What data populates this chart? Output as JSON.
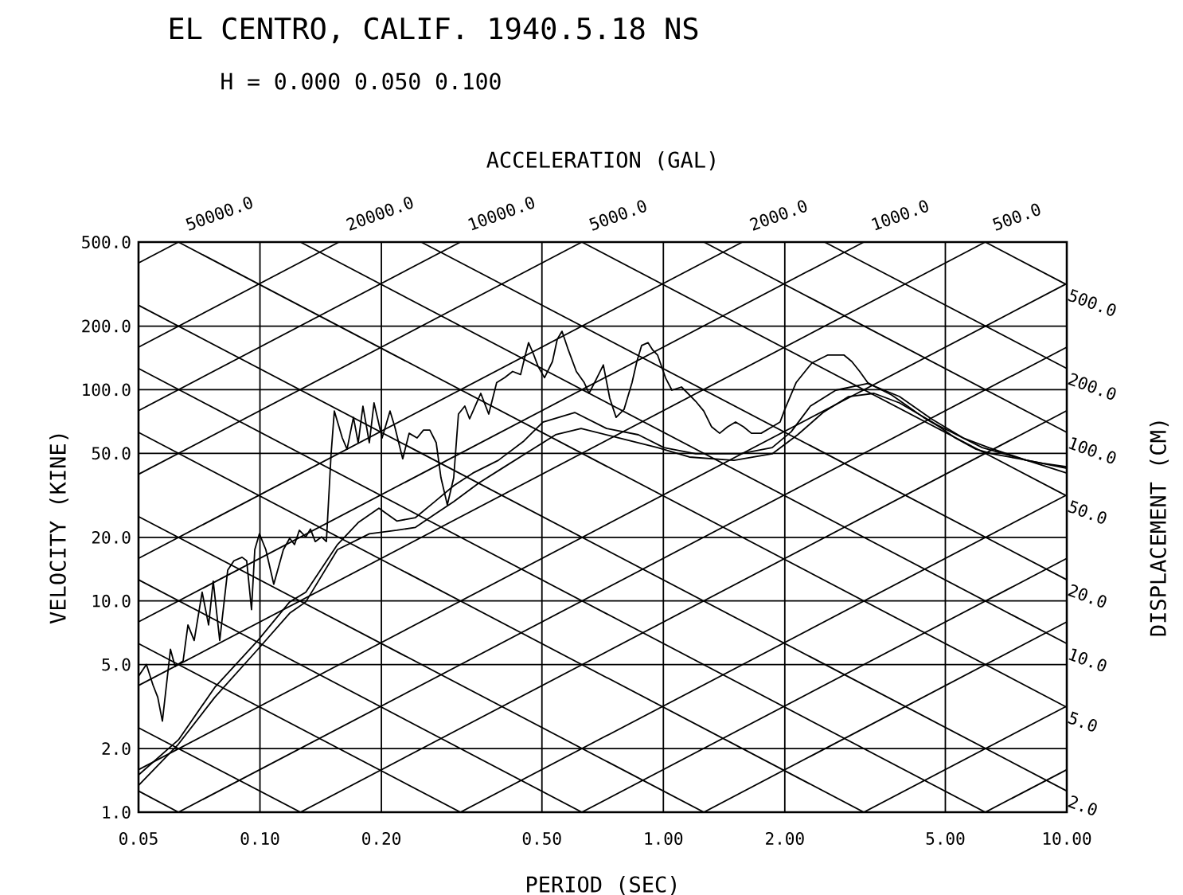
{
  "chart_data": {
    "type": "line",
    "title": "EL CENTRO, CALIF. 1940.5.18 NS",
    "subtitle": "H = 0.000 0.050 0.100",
    "xlabel": "PERIOD (SEC)",
    "ylabel": "VELOCITY (KINE)",
    "x2label": "ACCELERATION (GAL)",
    "y2label": "DISPLACEMENT (CM)",
    "log": "xy",
    "grid": true,
    "line_style": "solid",
    "xlim": [
      0.05,
      10
    ],
    "ylim": [
      1,
      500
    ],
    "xticks": [
      0.05,
      {
        "value": 0.1,
        "label": "0.10"
      },
      {
        "value": 0.2,
        "label": "0.20"
      },
      {
        "value": 0.5,
        "label": "0.50"
      },
      {
        "value": 1,
        "label": "1.00"
      },
      {
        "value": 2,
        "label": "2.00"
      },
      {
        "value": 5,
        "label": "5.00"
      },
      {
        "value": 10,
        "label": "10.00"
      }
    ],
    "yticks": [
      {
        "value": 1,
        "label": "1.0"
      },
      {
        "value": 2,
        "label": "2.0"
      },
      {
        "value": 5,
        "label": "5.0"
      },
      {
        "value": 10,
        "label": "10.0"
      },
      {
        "value": 20,
        "label": "20.0"
      },
      {
        "value": 50,
        "label": "50.0"
      },
      {
        "value": 100,
        "label": "100.0"
      },
      {
        "value": 200,
        "label": "200.0"
      },
      {
        "value": 500,
        "label": "500.0"
      }
    ],
    "series": [
      {
        "color": "#000000",
        "x": [
          0.05,
          0.0523,
          0.0543,
          0.0558,
          0.0573,
          0.06,
          0.0616,
          0.0645,
          0.0663,
          0.0687,
          0.0719,
          0.0746,
          0.0766,
          0.0795,
          0.0832,
          0.0862,
          0.0903,
          0.0927,
          0.0953,
          0.0971,
          0.0997,
          0.1034,
          0.1082,
          0.1143,
          0.1185,
          0.1218,
          0.1252,
          0.1299,
          0.1334,
          0.1371,
          0.1422,
          0.1461,
          0.1501,
          0.1529,
          0.16,
          0.1644,
          0.1705,
          0.1752,
          0.18,
          0.1867,
          0.1918,
          0.2008,
          0.2101,
          0.2159,
          0.2259,
          0.2343,
          0.2452,
          0.2543,
          0.2637,
          0.2735,
          0.281,
          0.2914,
          0.3022,
          0.3105,
          0.322,
          0.3309,
          0.3527,
          0.3691,
          0.3862,
          0.4042,
          0.423,
          0.4427,
          0.4549,
          0.4633,
          0.4761,
          0.4892,
          0.5074,
          0.531,
          0.5456,
          0.5607,
          0.5815,
          0.6085,
          0.6367,
          0.6543,
          0.6847,
          0.71,
          0.7363,
          0.7636,
          0.7991,
          0.8363,
          0.8596,
          0.8834,
          0.916,
          0.9413,
          0.9673,
          1.012,
          1.05,
          1.109,
          1.15,
          1.203,
          1.259,
          1.317,
          1.379,
          1.443,
          1.51,
          1.58,
          1.653,
          1.747,
          1.861,
          1.947,
          2.0,
          2.133,
          2.336,
          2.558,
          2.801,
          2.931,
          3.067,
          3.21,
          3.359,
          3.679,
          4.029,
          4.412,
          4.832,
          5.291,
          5.955,
          6.521,
          7.613,
          8.722,
          10
        ],
        "values": [
          4.4,
          5.0,
          4.0,
          3.5,
          2.7,
          5.9,
          4.9,
          5.2,
          7.7,
          6.5,
          11.0,
          7.7,
          12.4,
          6.5,
          14.0,
          15.5,
          16.1,
          15.5,
          9.1,
          17.5,
          20.8,
          17.5,
          12.0,
          17.5,
          19.8,
          18.5,
          21.6,
          20.1,
          21.9,
          19.1,
          20.1,
          19.1,
          49.7,
          79.3,
          59.1,
          52.3,
          74.0,
          56.1,
          83.6,
          56.1,
          86.6,
          59.1,
          79.3,
          66.7,
          47.1,
          62.2,
          59.1,
          64.4,
          64.4,
          56.1,
          38.3,
          28.5,
          38.3,
          76.7,
          83.6,
          72.8,
          96.1,
          76.7,
          108,
          114,
          122,
          118,
          146,
          167,
          148,
          129,
          114,
          136,
          173,
          189,
          154,
          122,
          108,
          96.1,
          114,
          131,
          91.2,
          74.0,
          80.7,
          108,
          136,
          162,
          167,
          154,
          146,
          114,
          99.5,
          103,
          96.1,
          88.1,
          79.3,
          66.7,
          62.2,
          66.7,
          70.3,
          66.7,
          62.2,
          62.2,
          66.7,
          70.3,
          80.7,
          108,
          134,
          146,
          146,
          136,
          122,
          108,
          103,
          94.4,
          83.6,
          74.0,
          66.7,
          59.1,
          52.3,
          49.7,
          47.1,
          44.8,
          43.2
        ]
      },
      {
        "color": "#000000",
        "x": [
          0.05,
          0.0628,
          0.0773,
          0.0988,
          0.1185,
          0.1299,
          0.1557,
          0.1752,
          0.1972,
          0.2184,
          0.2429,
          0.271,
          0.3022,
          0.3371,
          0.3898,
          0.4508,
          0.5028,
          0.603,
          0.7231,
          0.8672,
          1.003,
          1.203,
          1.551,
          1.861,
          2.075,
          2.314,
          2.676,
          3.21,
          3.849,
          4.616,
          5.537,
          6.403,
          7.961,
          10
        ],
        "values": [
          1.5,
          2.2,
          3.9,
          6.5,
          9.9,
          11.0,
          18.5,
          23.5,
          27.5,
          23.9,
          24.8,
          29.5,
          35.1,
          40.3,
          46.3,
          57.1,
          70.3,
          78.0,
          65.5,
          61.2,
          53.2,
          49.7,
          49.7,
          53.2,
          63.3,
          83.6,
          99.5,
          107,
          92.8,
          72.8,
          59.1,
          53.2,
          46.3,
          42.5
        ]
      },
      {
        "color": "#000000",
        "x": [
          0.05,
          0.0628,
          0.0773,
          0.0988,
          0.1185,
          0.1299,
          0.1557,
          0.1867,
          0.2184,
          0.2429,
          0.271,
          0.3022,
          0.3496,
          0.4042,
          0.4675,
          0.5406,
          0.6253,
          0.7776,
          0.9673,
          1.16,
          1.496,
          1.861,
          2.152,
          2.488,
          2.878,
          3.328,
          3.849,
          4.786,
          6.174,
          7.961,
          10
        ],
        "values": [
          1.34,
          2.1,
          3.5,
          5.9,
          8.75,
          9.9,
          17.5,
          20.8,
          21.6,
          22.3,
          25.7,
          29.5,
          36.3,
          43.2,
          51.4,
          61.2,
          65.5,
          59.1,
          53.2,
          48.0,
          46.3,
          49.7,
          61.2,
          78.0,
          92.8,
          96.1,
          86.6,
          67.9,
          53.2,
          46.3,
          40.3
        ]
      },
      {
        "name": "50000.0",
        "color": "#000000",
        "x": [
          0.05,
          0.0628
        ],
        "values": [
          398,
          500
        ]
      },
      {
        "name": "20000.0",
        "color": "#000000",
        "x": [
          0.05,
          0.157
        ],
        "values": [
          159,
          500
        ]
      },
      {
        "name": "10000.0",
        "color": "#000000",
        "x": [
          0.05,
          0.314
        ],
        "values": [
          79.6,
          500
        ]
      },
      {
        "name": "5000.0",
        "color": "#000000",
        "x": [
          0.05,
          0.628
        ],
        "values": [
          39.8,
          500
        ]
      },
      {
        "name": "2000.0",
        "color": "#000000",
        "x": [
          0.05,
          1.57
        ],
        "values": [
          15.9,
          500
        ]
      },
      {
        "name": "1000.0",
        "color": "#000000",
        "x": [
          0.05,
          3.14
        ],
        "values": [
          7.96,
          500
        ]
      },
      {
        "name": "500.0",
        "color": "#000000",
        "x": [
          0.05,
          6.28
        ],
        "values": [
          3.98,
          500
        ]
      },
      {
        "color": "#000000",
        "x": [
          0.05,
          10
        ],
        "values": [
          1.59,
          318
        ]
      },
      {
        "color": "#000000",
        "x": [
          0.0628,
          10
        ],
        "values": [
          1,
          159
        ]
      },
      {
        "color": "#000000",
        "x": [
          0.126,
          10
        ],
        "values": [
          1,
          79.6
        ]
      },
      {
        "color": "#000000",
        "x": [
          0.314,
          10
        ],
        "values": [
          1,
          31.8
        ]
      },
      {
        "color": "#000000",
        "x": [
          0.628,
          10
        ],
        "values": [
          1,
          15.9
        ]
      },
      {
        "color": "#000000",
        "x": [
          1.26,
          10
        ],
        "values": [
          1,
          7.96
        ]
      },
      {
        "color": "#000000",
        "x": [
          3.14,
          10
        ],
        "values": [
          1,
          3.18
        ]
      },
      {
        "color": "#000000",
        "x": [
          6.28,
          10
        ],
        "values": [
          1,
          1.59
        ]
      },
      {
        "name": "500.0",
        "color": "#000000",
        "x": [
          6.28,
          10
        ],
        "values": [
          500,
          314
        ]
      },
      {
        "name": "200.0",
        "color": "#000000",
        "x": [
          2.51,
          10
        ],
        "values": [
          500,
          126
        ]
      },
      {
        "name": "100.0",
        "color": "#000000",
        "x": [
          1.26,
          10
        ],
        "values": [
          500,
          62.8
        ]
      },
      {
        "name": "50.0",
        "color": "#000000",
        "x": [
          0.628,
          10
        ],
        "values": [
          500,
          31.4
        ]
      },
      {
        "name": "20.0",
        "color": "#000000",
        "x": [
          0.251,
          10
        ],
        "values": [
          500,
          12.6
        ]
      },
      {
        "name": "10.0",
        "color": "#000000",
        "x": [
          0.126,
          10
        ],
        "values": [
          500,
          6.28
        ]
      },
      {
        "name": "5.0",
        "color": "#000000",
        "x": [
          0.0628,
          10
        ],
        "values": [
          500,
          3.14
        ]
      },
      {
        "name": "2.0",
        "color": "#000000",
        "x": [
          0.05,
          10
        ],
        "values": [
          251,
          1.26
        ]
      },
      {
        "color": "#000000",
        "x": [
          0.05,
          6.28
        ],
        "values": [
          126,
          1
        ]
      },
      {
        "color": "#000000",
        "x": [
          0.05,
          3.14
        ],
        "values": [
          62.8,
          1
        ]
      },
      {
        "color": "#000000",
        "x": [
          0.05,
          1.26
        ],
        "values": [
          25.1,
          1
        ]
      },
      {
        "color": "#000000",
        "x": [
          0.05,
          0.628
        ],
        "values": [
          12.6,
          1
        ]
      },
      {
        "color": "#000000",
        "x": [
          0.05,
          0.314
        ],
        "values": [
          6.28,
          1
        ]
      },
      {
        "color": "#000000",
        "x": [
          0.05,
          0.126
        ],
        "values": [
          2.51,
          1
        ]
      },
      {
        "color": "#000000",
        "x": [
          0.05,
          0.0628
        ],
        "values": [
          1.26,
          1
        ]
      }
    ]
  }
}
